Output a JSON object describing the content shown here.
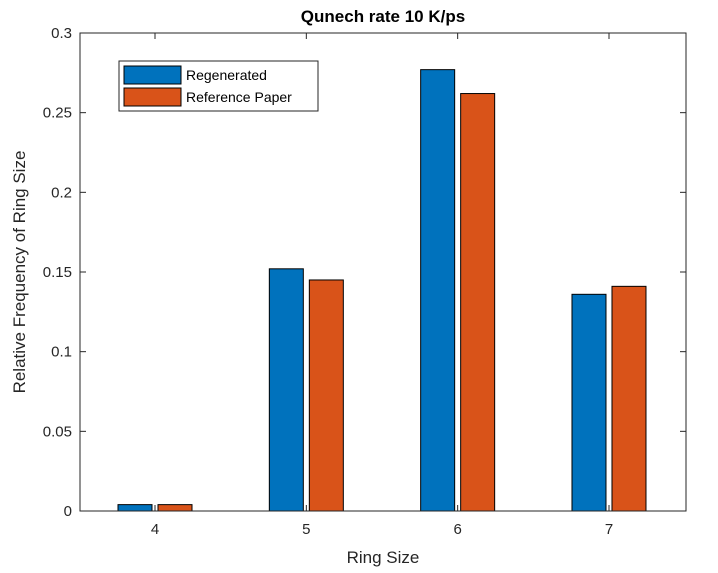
{
  "chart_data": {
    "type": "bar",
    "title": "Qunech rate 10 K/ps",
    "xlabel": "Ring Size",
    "ylabel": "Relative Frequency of Ring Size",
    "categories": [
      "4",
      "5",
      "6",
      "7"
    ],
    "series": [
      {
        "name": "Regenerated",
        "color": "#0072BD",
        "values": [
          0.004,
          0.152,
          0.277,
          0.136
        ]
      },
      {
        "name": "Reference Paper",
        "color": "#D95319",
        "values": [
          0.004,
          0.145,
          0.262,
          0.141
        ]
      }
    ],
    "ylim": [
      0,
      0.3
    ],
    "yticks": [
      0,
      0.05,
      0.1,
      0.15,
      0.2,
      0.25,
      0.3
    ],
    "ytick_labels": [
      "0",
      "0.05",
      "0.1",
      "0.15",
      "0.2",
      "0.25",
      "0.3"
    ],
    "grid": false,
    "legend_position": "top-left"
  }
}
